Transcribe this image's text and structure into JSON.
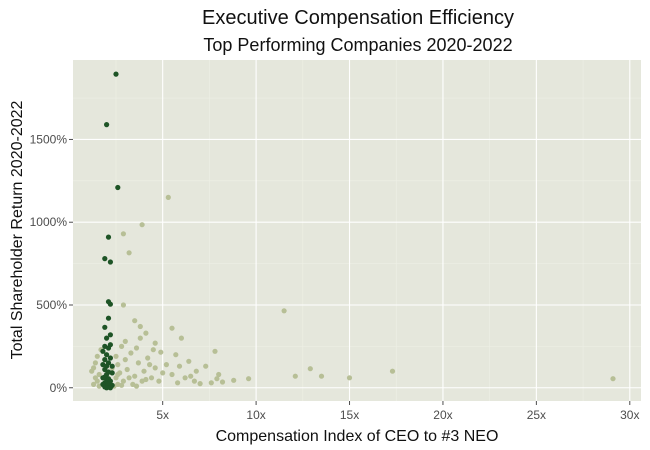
{
  "chart_data": {
    "type": "scatter",
    "title": "Executive Compensation Efficiency",
    "subtitle": "Top Performing Companies 2020-2022",
    "xlabel": "Compensation Index of CEO to #3 NEO",
    "ylabel": "Total Shareholder Return 2020-2022",
    "xlim": [
      0.2,
      30.6
    ],
    "ylim": [
      -80,
      1980
    ],
    "x_ticks": [
      5,
      10,
      15,
      20,
      25,
      30
    ],
    "x_tick_labels": [
      "5x",
      "10x",
      "15x",
      "20x",
      "25x",
      "30x"
    ],
    "y_ticks": [
      0,
      500,
      1000,
      1500
    ],
    "y_tick_labels": [
      "0%",
      "500%",
      "1000%",
      "1500%"
    ],
    "grid": true,
    "legend": "none",
    "colors": {
      "panel_background": "#e5e7dc",
      "grid_major": "#ffffff",
      "grid_minor": "#eef0e6",
      "highlight": "#1e5426",
      "other": "#b7bf96"
    },
    "series": [
      {
        "color": "#b7bf96",
        "points": [
          [
            5.3,
            1150
          ],
          [
            3.9,
            985
          ],
          [
            2.9,
            930
          ],
          [
            3.2,
            815
          ],
          [
            11.5,
            465
          ],
          [
            2.9,
            500
          ],
          [
            3.8,
            370
          ],
          [
            3.5,
            405
          ],
          [
            5.5,
            360
          ],
          [
            4.1,
            330
          ],
          [
            3.0,
            280
          ],
          [
            4.6,
            270
          ],
          [
            6.0,
            300
          ],
          [
            7.8,
            220
          ],
          [
            4.9,
            215
          ],
          [
            3.6,
            240
          ],
          [
            12.9,
            115
          ],
          [
            12.1,
            70
          ],
          [
            13.5,
            70
          ],
          [
            17.3,
            100
          ],
          [
            15.0,
            60
          ],
          [
            29.1,
            55
          ],
          [
            9.6,
            55
          ],
          [
            8.8,
            45
          ],
          [
            8.2,
            35
          ],
          [
            7.6,
            30
          ],
          [
            7.9,
            55
          ],
          [
            7.0,
            25
          ],
          [
            6.8,
            100
          ],
          [
            6.5,
            70
          ],
          [
            6.2,
            60
          ],
          [
            5.8,
            30
          ],
          [
            5.5,
            80
          ],
          [
            5.2,
            140
          ],
          [
            5.0,
            90
          ],
          [
            4.8,
            40
          ],
          [
            4.6,
            120
          ],
          [
            4.4,
            60
          ],
          [
            4.2,
            180
          ],
          [
            4.0,
            100
          ],
          [
            3.9,
            40
          ],
          [
            3.7,
            150
          ],
          [
            3.5,
            70
          ],
          [
            3.4,
            20
          ],
          [
            3.3,
            210
          ],
          [
            3.1,
            110
          ],
          [
            3.0,
            170
          ],
          [
            2.9,
            40
          ],
          [
            2.8,
            250
          ],
          [
            2.7,
            90
          ],
          [
            2.6,
            140
          ],
          [
            2.6,
            20
          ],
          [
            2.5,
            60
          ],
          [
            2.5,
            190
          ],
          [
            2.4,
            10
          ],
          [
            2.3,
            120
          ],
          [
            1.6,
            80
          ],
          [
            1.5,
            40
          ],
          [
            1.4,
            150
          ],
          [
            1.3,
            20
          ],
          [
            1.2,
            100
          ],
          [
            1.7,
            230
          ],
          [
            1.6,
            10
          ],
          [
            1.5,
            190
          ],
          [
            1.4,
            60
          ],
          [
            1.3,
            120
          ],
          [
            6.4,
            160
          ],
          [
            5.9,
            130
          ],
          [
            4.5,
            230
          ],
          [
            4.1,
            50
          ],
          [
            3.6,
            10
          ],
          [
            3.2,
            60
          ],
          [
            2.8,
            15
          ],
          [
            2.6,
            80
          ],
          [
            7.3,
            130
          ],
          [
            8.0,
            80
          ],
          [
            6.7,
            40
          ],
          [
            3.8,
            300
          ],
          [
            4.3,
            140
          ],
          [
            5.7,
            200
          ]
        ]
      },
      {
        "color": "#1e5426",
        "points": [
          [
            2.5,
            1895
          ],
          [
            2.0,
            1590
          ],
          [
            2.6,
            1210
          ],
          [
            2.1,
            910
          ],
          [
            1.9,
            780
          ],
          [
            2.2,
            760
          ],
          [
            2.1,
            520
          ],
          [
            2.2,
            505
          ],
          [
            2.1,
            420
          ],
          [
            1.9,
            365
          ],
          [
            2.2,
            320
          ],
          [
            2.0,
            300
          ],
          [
            1.9,
            250
          ],
          [
            2.1,
            240
          ],
          [
            2.0,
            200
          ],
          [
            1.9,
            170
          ],
          [
            2.1,
            150
          ],
          [
            2.0,
            130
          ],
          [
            1.9,
            110
          ],
          [
            2.1,
            95
          ],
          [
            2.0,
            80
          ],
          [
            1.9,
            65
          ],
          [
            2.1,
            55
          ],
          [
            2.0,
            40
          ],
          [
            1.9,
            30
          ],
          [
            2.1,
            20
          ],
          [
            2.0,
            10
          ],
          [
            1.9,
            5
          ],
          [
            2.2,
            0
          ],
          [
            2.0,
            0
          ],
          [
            1.8,
            60
          ],
          [
            1.8,
            140
          ],
          [
            2.2,
            180
          ],
          [
            2.3,
            90
          ],
          [
            2.2,
            40
          ],
          [
            1.8,
            20
          ],
          [
            2.3,
            130
          ],
          [
            2.2,
            260
          ],
          [
            1.8,
            220
          ],
          [
            2.3,
            15
          ]
        ]
      }
    ]
  }
}
